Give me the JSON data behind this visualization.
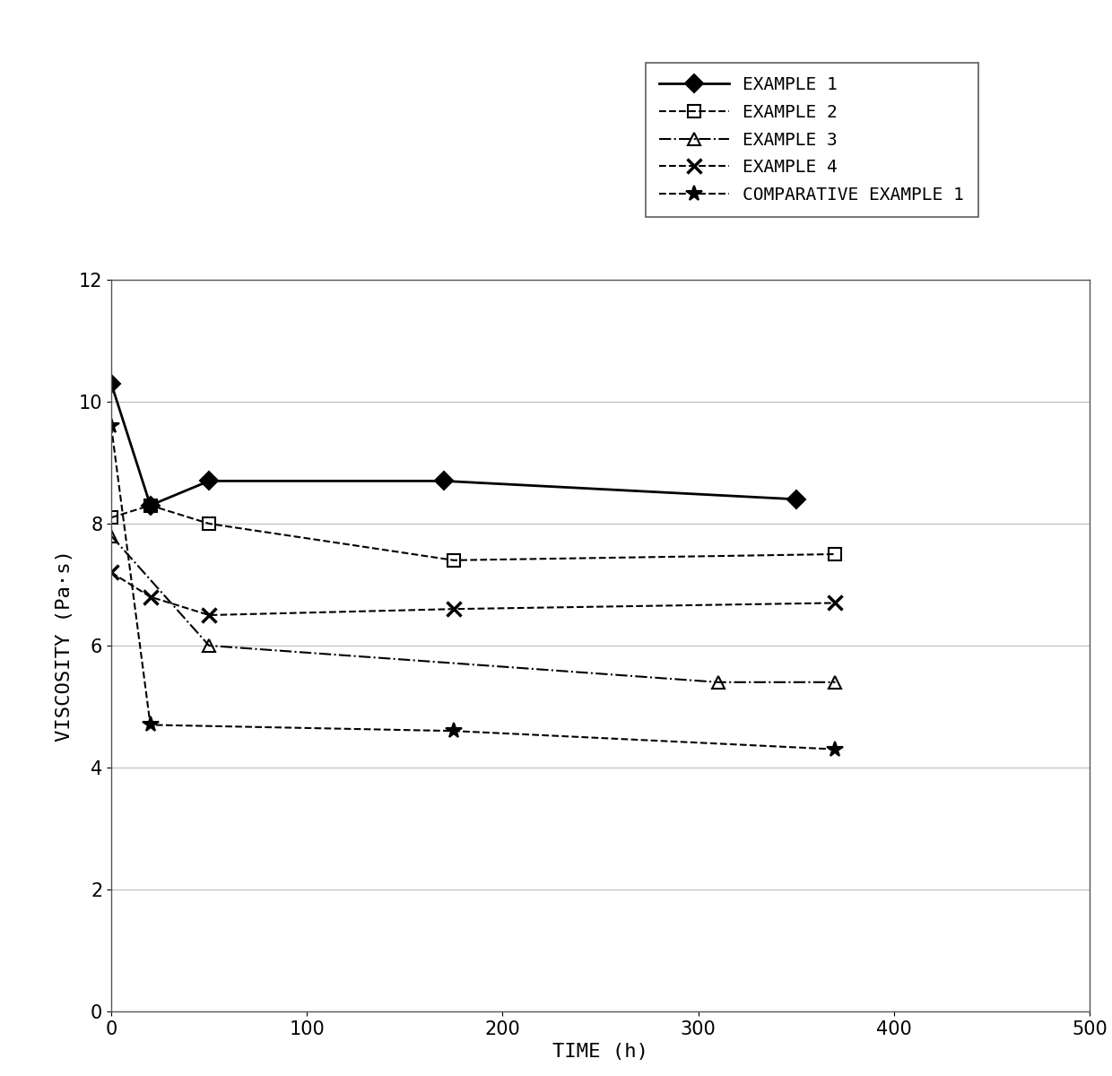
{
  "series": [
    {
      "label": "EXAMPLE 1",
      "x": [
        0,
        20,
        50,
        170,
        350
      ],
      "y": [
        10.3,
        8.3,
        8.7,
        8.7,
        8.4
      ],
      "linestyle": "-",
      "color": "#000000",
      "marker": "D",
      "marker_filled": true,
      "linewidth": 2.0,
      "markersize": 10
    },
    {
      "label": "EXAMPLE 2",
      "x": [
        0,
        20,
        50,
        175,
        370
      ],
      "y": [
        8.1,
        8.3,
        8.0,
        7.4,
        7.5
      ],
      "linestyle": "--",
      "color": "#000000",
      "marker": "s",
      "marker_filled": false,
      "linewidth": 1.5,
      "markersize": 10
    },
    {
      "label": "EXAMPLE 3",
      "x": [
        0,
        50,
        310,
        370
      ],
      "y": [
        7.8,
        6.0,
        5.4,
        5.4
      ],
      "linestyle": "-.",
      "color": "#000000",
      "marker": "^",
      "marker_filled": false,
      "linewidth": 1.5,
      "markersize": 10
    },
    {
      "label": "EXAMPLE 4",
      "x": [
        0,
        20,
        50,
        175,
        370
      ],
      "y": [
        7.2,
        6.8,
        6.5,
        6.6,
        6.7
      ],
      "linestyle": "--",
      "color": "#000000",
      "marker": "x",
      "marker_filled": false,
      "linewidth": 1.5,
      "markersize": 12,
      "markeredgewidth": 2.5
    },
    {
      "label": "COMPARATIVE EXAMPLE 1",
      "x": [
        0,
        20,
        175,
        370
      ],
      "y": [
        9.6,
        4.7,
        4.6,
        4.3
      ],
      "linestyle": "--",
      "color": "#000000",
      "marker": "*",
      "marker_filled": false,
      "linewidth": 1.5,
      "markersize": 13,
      "markeredgewidth": 1.5
    }
  ],
  "xlabel": "TIME (h)",
  "ylabel": "VISCOSITY (Pa·s)",
  "xlim": [
    0,
    500
  ],
  "ylim": [
    0,
    12
  ],
  "xticks": [
    0,
    100,
    200,
    300,
    400,
    500
  ],
  "yticks": [
    0,
    2,
    4,
    6,
    8,
    10,
    12
  ],
  "grid_color": "#bbbbbb",
  "background_color": "#ffffff",
  "legend_fontsize": 14,
  "axis_fontsize": 16,
  "tick_fontsize": 15
}
